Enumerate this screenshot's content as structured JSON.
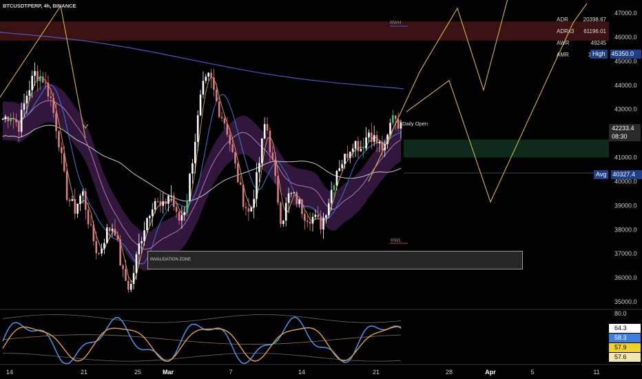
{
  "header": {
    "symbol_label": "BTCUSDTPERP, 4h, BINANCE"
  },
  "stats": [
    {
      "label": "ADR",
      "value": "20398.67"
    },
    {
      "label": "ADRx3",
      "value": "61196.01"
    },
    {
      "label": "AWR",
      "value": "49245"
    },
    {
      "label": "AMR",
      "value": "115438"
    }
  ],
  "annotations": {
    "rwh": "RWH",
    "rwl": "RWL",
    "daily_open": "Daily Open",
    "invalidation": "INVALIDATION ZONE"
  },
  "price_badges": {
    "high_label": "High",
    "high_value": "45350.0",
    "last_value": "42233.4",
    "countdown": "08:30",
    "avg_label": "Avg",
    "avg_value": "40327.4"
  },
  "osc_badges": [
    "64.3",
    "58.3",
    "57.9",
    "57.6"
  ],
  "osc_axis": {
    "top_tick": "80.0"
  },
  "colors": {
    "bg": "#000000",
    "up": "#ffffff",
    "down": "#e07a85",
    "green": "#2ecc71",
    "zigzag": "#d4b84a",
    "ma_long": "#5353c9",
    "ma_mid": "#c9c9c9",
    "ribbon": "#5a2a6e",
    "ema_blue": "#3d7bd8",
    "ema_yellow": "#e1c34a",
    "rwh_zone": "#3a1212",
    "demand_zone": "#0d2a1c",
    "osc_blue": "#4d8de3",
    "osc_orange": "#e8a33c"
  },
  "chart_data": {
    "type": "candlestick",
    "title": "BTCUSDTPERP, 4h, BINANCE",
    "y_ticks": [
      "47000.0",
      "46000.0",
      "45000.0",
      "44000.0",
      "43000.0",
      "42000.0",
      "41000.0",
      "40000.0",
      "39000.0",
      "38000.0",
      "37000.0",
      "36000.0",
      "35000.0"
    ],
    "x_ticks": [
      "14",
      "21",
      "25",
      "Mar",
      "7",
      "14",
      "21",
      "28",
      "Apr",
      "5",
      "11"
    ],
    "ylim": [
      34700,
      47400
    ],
    "levels": {
      "high": 45350.0,
      "last": 42233.4,
      "avg": 40327.4
    },
    "zones": [
      {
        "name": "RWH",
        "from": 45850,
        "to": 46650
      },
      {
        "name": "demand",
        "from": 41000,
        "to": 41750
      },
      {
        "name": "INVALIDATION ZONE",
        "from": 36350,
        "to": 37150
      }
    ],
    "price_path": [
      42600,
      42800,
      42300,
      43600,
      44500,
      44300,
      43500,
      41800,
      39500,
      38800,
      39600,
      38000,
      36900,
      37900,
      38200,
      36200,
      35500,
      37200,
      38400,
      39300,
      38800,
      39600,
      38300,
      39000,
      41400,
      43800,
      44400,
      43100,
      42400,
      40900,
      39400,
      38600,
      40300,
      42600,
      40500,
      38300,
      39500,
      39200,
      38600,
      38500,
      38200,
      39300,
      40600,
      41000,
      41700,
      41400,
      42100,
      41600,
      41300,
      42900,
      42233
    ]
  }
}
